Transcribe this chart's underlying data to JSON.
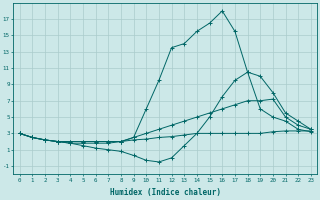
{
  "xlabel": "Humidex (Indice chaleur)",
  "background_color": "#cce8e8",
  "grid_color": "#aacccc",
  "line_color": "#006666",
  "x_ticks": [
    0,
    1,
    2,
    3,
    4,
    5,
    6,
    7,
    8,
    9,
    10,
    11,
    12,
    13,
    14,
    15,
    16,
    17,
    18,
    19,
    20,
    21,
    22,
    23
  ],
  "y_ticks": [
    -1,
    1,
    3,
    5,
    7,
    9,
    11,
    13,
    15,
    17
  ],
  "xlim": [
    -0.5,
    23.5
  ],
  "ylim": [
    -2.0,
    19.0
  ],
  "series": [
    {
      "x": [
        0,
        1,
        2,
        3,
        4,
        5,
        6,
        7,
        8,
        9,
        10,
        11,
        12,
        13,
        14,
        15,
        16,
        17,
        18,
        19,
        20,
        21,
        22,
        23
      ],
      "y": [
        3,
        2.5,
        2.2,
        2.0,
        2.0,
        2.0,
        2.0,
        2.0,
        2.0,
        2.2,
        2.3,
        2.5,
        2.6,
        2.8,
        3.0,
        3.0,
        3.0,
        3.0,
        3.0,
        3.0,
        3.2,
        3.3,
        3.3,
        3.3
      ]
    },
    {
      "x": [
        0,
        1,
        2,
        3,
        4,
        5,
        6,
        7,
        8,
        9,
        10,
        11,
        12,
        13,
        14,
        15,
        16,
        17,
        18,
        19,
        20,
        21,
        22,
        23
      ],
      "y": [
        3,
        2.5,
        2.2,
        2.0,
        2.0,
        2.0,
        2.0,
        2.0,
        2.0,
        2.5,
        3.0,
        3.5,
        4.0,
        4.5,
        5.0,
        5.5,
        6.0,
        6.5,
        7.0,
        7.0,
        7.2,
        5.0,
        4.0,
        3.5
      ]
    },
    {
      "x": [
        0,
        1,
        2,
        3,
        4,
        5,
        6,
        7,
        8,
        9,
        10,
        11,
        12,
        13,
        14,
        15,
        16,
        17,
        18,
        19,
        20,
        21,
        22,
        23
      ],
      "y": [
        3,
        2.5,
        2.2,
        2.0,
        1.8,
        1.8,
        1.8,
        1.8,
        2.0,
        2.5,
        6.0,
        9.5,
        13.5,
        14.0,
        15.5,
        16.5,
        18.0,
        15.5,
        10.5,
        6.0,
        5.0,
        4.5,
        3.5,
        3.2
      ]
    },
    {
      "x": [
        0,
        1,
        2,
        3,
        4,
        5,
        6,
        7,
        8,
        9,
        10,
        11,
        12,
        13,
        14,
        15,
        16,
        17,
        18,
        19,
        20,
        21,
        22,
        23
      ],
      "y": [
        3,
        2.5,
        2.2,
        2.0,
        1.8,
        1.5,
        1.2,
        1.0,
        0.8,
        0.3,
        -0.3,
        -0.5,
        0.0,
        1.5,
        3.0,
        5.0,
        7.5,
        9.5,
        10.5,
        10.0,
        8.0,
        5.5,
        4.5,
        3.5
      ]
    }
  ]
}
